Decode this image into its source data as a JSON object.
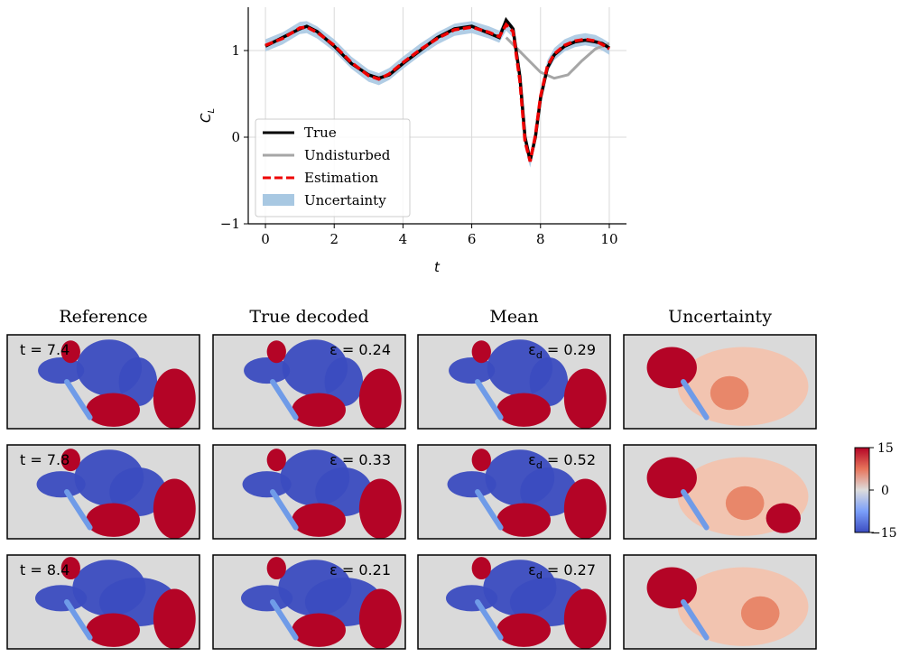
{
  "chart_data": [
    {
      "type": "line",
      "xlabel": "t",
      "ylabel": "C_L",
      "xlim": [
        -0.5,
        10.5
      ],
      "ylim": [
        -1,
        1.5
      ],
      "xticks": [
        "0",
        "2",
        "4",
        "6",
        "8",
        "10"
      ],
      "xtick_values": [
        0,
        2,
        4,
        6,
        8,
        10
      ],
      "yticks": [
        "−1",
        "0",
        "1"
      ],
      "ytick_values": [
        -1,
        0,
        1
      ],
      "grid": true,
      "legend_position": "lower-left",
      "series": [
        {
          "name": "True",
          "color": "#000000",
          "x": [
            0,
            0.5,
            1.0,
            1.2,
            1.5,
            2.0,
            2.5,
            3.0,
            3.3,
            3.6,
            4.0,
            4.5,
            5.0,
            5.5,
            6.0,
            6.5,
            6.8,
            7.0,
            7.2,
            7.4,
            7.55,
            7.7,
            7.85,
            8.0,
            8.2,
            8.4,
            8.7,
            9.0,
            9.3,
            9.6,
            9.8,
            10.0
          ],
          "y": [
            1.05,
            1.15,
            1.25,
            1.28,
            1.22,
            1.05,
            0.85,
            0.72,
            0.68,
            0.72,
            0.85,
            1.0,
            1.15,
            1.25,
            1.28,
            1.2,
            1.15,
            1.35,
            1.25,
            0.7,
            0.0,
            -0.27,
            0.0,
            0.45,
            0.8,
            0.95,
            1.05,
            1.1,
            1.12,
            1.1,
            1.08,
            1.03
          ]
        },
        {
          "name": "Undisturbed",
          "color": "#a6a6a6",
          "x": [
            7.0,
            7.5,
            8.0,
            8.4,
            8.8,
            9.2,
            9.6,
            10.0
          ],
          "y": [
            1.15,
            0.95,
            0.75,
            0.68,
            0.72,
            0.88,
            1.02,
            1.08
          ]
        },
        {
          "name": "Estimation",
          "color": "#ee0000",
          "x": [
            0,
            0.5,
            1.0,
            1.2,
            1.5,
            2.0,
            2.5,
            3.0,
            3.3,
            3.6,
            4.0,
            4.5,
            5.0,
            5.5,
            6.0,
            6.5,
            6.8,
            7.0,
            7.2,
            7.4,
            7.55,
            7.7,
            7.85,
            8.0,
            8.2,
            8.4,
            8.7,
            9.0,
            9.3,
            9.6,
            9.8,
            10.0
          ],
          "y": [
            1.06,
            1.14,
            1.26,
            1.27,
            1.21,
            1.06,
            0.86,
            0.71,
            0.67,
            0.73,
            0.86,
            1.01,
            1.14,
            1.24,
            1.27,
            1.21,
            1.16,
            1.3,
            1.22,
            0.65,
            -0.05,
            -0.28,
            0.02,
            0.47,
            0.82,
            0.96,
            1.06,
            1.11,
            1.13,
            1.11,
            1.07,
            1.02
          ]
        },
        {
          "name": "Uncertainty",
          "color": "#a8c8e2",
          "band_halfwidth": 0.07
        }
      ]
    },
    {
      "type": "heatmap",
      "column_titles": [
        "Reference",
        "True decoded",
        "Mean",
        "Uncertainty"
      ],
      "rows": [
        {
          "time_label": "t = 7.4",
          "true_decoded_error": "ε = 0.24",
          "mean_error": "0.29"
        },
        {
          "time_label": "t = 7.8",
          "true_decoded_error": "ε = 0.33",
          "mean_error": "0.52"
        },
        {
          "time_label": "t = 8.4",
          "true_decoded_error": "ε = 0.21",
          "mean_error": "0.27"
        }
      ],
      "mean_error_prefix": "ε",
      "mean_error_subscript": "d",
      "mean_error_eq": " = ",
      "colorbar": {
        "ticks": [
          "15",
          "0",
          "−15"
        ],
        "tick_values": [
          15,
          0,
          -15
        ],
        "range": [
          -15,
          15
        ],
        "colormap": "coolwarm"
      },
      "colors": {
        "background": "#dadada",
        "positive": "#b40426",
        "negative": "#3b4cc0",
        "airfoil": "#6f9be8",
        "uncertainty_light": "#f2c4b0",
        "uncertainty_mid": "#e8876a"
      }
    }
  ]
}
